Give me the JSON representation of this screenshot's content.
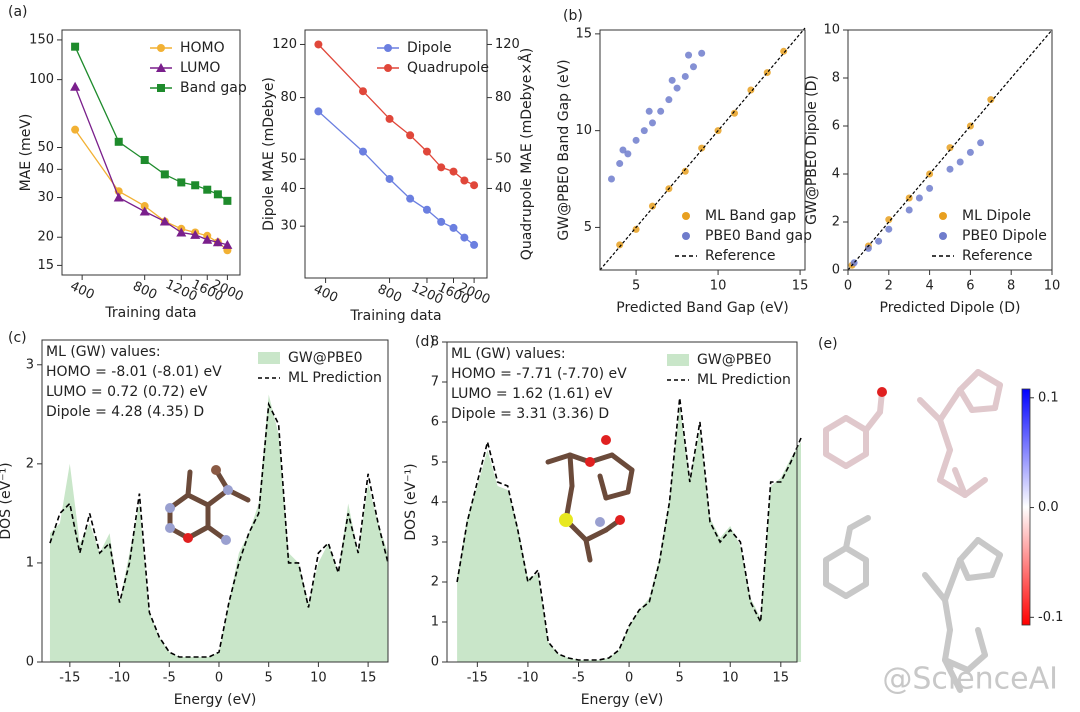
{
  "panel_labels": [
    "(a)",
    "(b)",
    "(c)",
    "(d)",
    "(e)"
  ],
  "watermark": "@ScienceAI",
  "chart_data": [
    {
      "type": "line",
      "xlabel": "Training data",
      "ylabel": "MAE (meV)",
      "xlog": true,
      "ylog": true,
      "x": [
        370,
        600,
        800,
        1000,
        1200,
        1400,
        1600,
        1800,
        2000
      ],
      "xlim": [
        320,
        2300
      ],
      "xticks": [
        400,
        800,
        1200,
        1600,
        2000
      ],
      "ylim": [
        13.6,
        166
      ],
      "yticks": [
        15,
        20,
        30,
        40,
        50,
        100,
        150
      ],
      "legend": "upper right",
      "series": [
        {
          "name": "HOMO",
          "color": "#f2b134",
          "marker": "circle",
          "values": [
            60,
            32,
            27.5,
            23.5,
            21.8,
            21,
            20.3,
            19,
            17.5
          ]
        },
        {
          "name": "LUMO",
          "color": "#7a1f8c",
          "marker": "triangle",
          "values": [
            93,
            30,
            26,
            23.5,
            21,
            20.5,
            19.5,
            19,
            18.5
          ]
        },
        {
          "name": "Band gap",
          "color": "#1e8b2c",
          "marker": "square",
          "values": [
            140,
            53,
            44,
            38,
            35,
            34,
            32.5,
            31,
            29
          ]
        }
      ]
    },
    {
      "type": "line",
      "xlabel": "Training data",
      "ylabel": "Dipole MAE (mDebye)",
      "y2label": "Quadrupole MAE (mDebye×Å)",
      "xlog": true,
      "ylog": true,
      "x": [
        370,
        600,
        800,
        1000,
        1200,
        1400,
        1600,
        1800,
        2000
      ],
      "xlim": [
        320,
        2300
      ],
      "xticks": [
        400,
        800,
        1200,
        1600,
        2000
      ],
      "ylim": [
        20.2,
        134
      ],
      "yticks": [
        30,
        40,
        50,
        80,
        120
      ],
      "y2lim": [
        20.2,
        134
      ],
      "y2ticks": [
        40,
        50,
        80,
        120
      ],
      "legend": "upper right",
      "series": [
        {
          "name": "Dipole",
          "color": "#6b7fe0",
          "marker": "circle",
          "values": [
            72,
            53,
            43,
            37,
            34,
            31,
            29.6,
            27.5,
            26
          ]
        },
        {
          "name": "Quadrupole",
          "color": "#e0473a",
          "marker": "circle",
          "axis": "y2",
          "values": [
            120,
            84,
            68,
            60,
            53,
            47,
            45.5,
            42.5,
            41
          ]
        }
      ]
    },
    {
      "type": "scatter",
      "xlabel": "Predicted Band Gap (eV)",
      "ylabel": "GW@PBE0 Band Gap (eV)",
      "xlim": [
        2.8,
        15.3
      ],
      "xticks": [
        5,
        10,
        15
      ],
      "ylim": [
        2.8,
        15.2
      ],
      "yticks": [
        5,
        10,
        15
      ],
      "legend": "lower right",
      "series": [
        {
          "name": "ML Band gap",
          "color": "#e8a020",
          "x": [
            4,
            5,
            6,
            7,
            8,
            9,
            10,
            11,
            12,
            13,
            14
          ],
          "values": [
            4.1,
            4.9,
            6.1,
            7.0,
            7.9,
            9.1,
            10.0,
            10.9,
            12.1,
            13.0,
            14.1
          ]
        },
        {
          "name": "PBE0 Band gap",
          "color": "#6f7ccc",
          "x": [
            3.5,
            4,
            4.5,
            5,
            5.5,
            6,
            6.5,
            7,
            7.5,
            8,
            8.5,
            9,
            4.2,
            5.8,
            7.2,
            8.2
          ],
          "values": [
            7.5,
            8.3,
            8.8,
            9.5,
            10.0,
            10.4,
            11.0,
            11.6,
            12.2,
            12.8,
            13.3,
            14.0,
            9.0,
            11.0,
            12.6,
            13.9
          ]
        },
        {
          "name": "Reference",
          "color": "#000000",
          "style": "dashed",
          "x": [
            2.8,
            15.3
          ],
          "values": [
            2.8,
            15.3
          ]
        }
      ]
    },
    {
      "type": "scatter",
      "xlabel": "Predicted Dipole (D)",
      "ylabel": "GW@PBE0 Dipole (D)",
      "xlim": [
        0,
        10
      ],
      "xticks": [
        0,
        2,
        4,
        6,
        8,
        10
      ],
      "ylim": [
        0,
        10
      ],
      "yticks": [
        0,
        2,
        4,
        6,
        8,
        10
      ],
      "legend": "lower right",
      "series": [
        {
          "name": "ML Dipole",
          "color": "#e8a020",
          "x": [
            0.2,
            1,
            2,
            3,
            4,
            5,
            6,
            7
          ],
          "values": [
            0.2,
            1.0,
            2.1,
            3.0,
            4.0,
            5.1,
            6.0,
            7.1
          ]
        },
        {
          "name": "PBE0 Dipole",
          "color": "#6f7ccc",
          "x": [
            0.3,
            1,
            2,
            3,
            4,
            5,
            6,
            6.5,
            1.5,
            3.5,
            5.5
          ],
          "values": [
            0.3,
            0.9,
            1.7,
            2.5,
            3.4,
            4.2,
            4.9,
            5.3,
            1.2,
            3.0,
            4.5
          ]
        },
        {
          "name": "Reference",
          "color": "#000000",
          "style": "dashed",
          "x": [
            0,
            10
          ],
          "values": [
            0,
            10
          ]
        }
      ]
    },
    {
      "type": "line",
      "xlabel": "Energy (eV)",
      "ylabel": "DOS (eV⁻¹)",
      "annotation": [
        "ML (GW) values:",
        "HOMO = -8.01 (-8.01) eV",
        "LUMO = 0.72 (0.72) eV",
        "Dipole = 4.28 (4.35) D"
      ],
      "x": [
        -17,
        -16,
        -15,
        -14,
        -13,
        -12,
        -11,
        -10,
        -9,
        -8,
        -7,
        -6,
        -5,
        -4,
        -3,
        -2,
        -1,
        0,
        1,
        2,
        3,
        4,
        5,
        6,
        7,
        8,
        9,
        10,
        11,
        12,
        13,
        14,
        15,
        16,
        17
      ],
      "xlim": [
        -17.8,
        17
      ],
      "xticks": [
        -15,
        -10,
        -5,
        0,
        5,
        10,
        15
      ],
      "ylim": [
        0,
        3.25
      ],
      "yticks": [
        0,
        1,
        2,
        3
      ],
      "legend": "upper right",
      "series": [
        {
          "name": "GW@PBE0",
          "color": "#c9e6c9",
          "style": "area",
          "values": [
            1.3,
            1.4,
            2.0,
            1.2,
            1.4,
            1.1,
            1.3,
            0.6,
            1.1,
            1.6,
            0.5,
            0.25,
            0.1,
            0.05,
            0.05,
            0.05,
            0.05,
            0.1,
            0.6,
            1.1,
            1.3,
            1.6,
            2.7,
            2.3,
            1.1,
            1.0,
            0.6,
            1.0,
            1.2,
            0.9,
            1.6,
            1.1,
            1.8,
            1.4,
            1.1
          ]
        },
        {
          "name": "ML Prediction",
          "color": "#000000",
          "style": "dashed",
          "values": [
            1.2,
            1.5,
            1.6,
            1.1,
            1.5,
            1.1,
            1.2,
            0.6,
            1.0,
            1.7,
            0.5,
            0.25,
            0.1,
            0.05,
            0.05,
            0.05,
            0.05,
            0.1,
            0.6,
            1.0,
            1.3,
            1.5,
            2.6,
            2.4,
            1.0,
            1.0,
            0.55,
            1.1,
            1.2,
            0.9,
            1.5,
            1.1,
            1.9,
            1.4,
            1.0
          ]
        }
      ]
    },
    {
      "type": "line",
      "xlabel": "Energy (eV)",
      "ylabel": "DOS (eV⁻¹)",
      "annotation": [
        "ML (GW) values:",
        "HOMO = -7.71 (-7.70) eV",
        "LUMO = 1.62 (1.61) eV",
        "Dipole = 3.31 (3.36) D"
      ],
      "x": [
        -17,
        -16,
        -15,
        -14,
        -13,
        -12,
        -11,
        -10,
        -9,
        -8,
        -7,
        -6,
        -5,
        -4,
        -3,
        -2,
        -1,
        0,
        1,
        2,
        3,
        4,
        5,
        6,
        7,
        8,
        9,
        10,
        11,
        12,
        13,
        14,
        15,
        16,
        17
      ],
      "xlim": [
        -18,
        16.6
      ],
      "xticks": [
        -15,
        -10,
        -5,
        0,
        5,
        10,
        15
      ],
      "ylim": [
        0,
        8
      ],
      "yticks": [
        0,
        1,
        2,
        3,
        4,
        5,
        6,
        7,
        8
      ],
      "legend": "upper right",
      "series": [
        {
          "name": "GW@PBE0",
          "color": "#c9e6c9",
          "style": "area",
          "values": [
            2.1,
            3.6,
            4.4,
            5.3,
            4.4,
            4.3,
            3.4,
            2.1,
            2.2,
            0.5,
            0.2,
            0.1,
            0.05,
            0.05,
            0.05,
            0.1,
            0.3,
            0.9,
            1.3,
            1.6,
            2.6,
            4.1,
            6.4,
            4.6,
            5.8,
            3.6,
            3.1,
            3.4,
            2.9,
            1.6,
            1.1,
            4.4,
            4.6,
            5.1,
            5.5
          ]
        },
        {
          "name": "ML Prediction",
          "color": "#000000",
          "style": "dashed",
          "values": [
            2.0,
            3.5,
            4.5,
            5.5,
            4.5,
            4.4,
            3.3,
            2.0,
            2.3,
            0.5,
            0.2,
            0.1,
            0.05,
            0.05,
            0.05,
            0.1,
            0.3,
            0.9,
            1.3,
            1.5,
            2.5,
            4.0,
            6.6,
            4.5,
            6.0,
            3.5,
            3.0,
            3.3,
            3.0,
            1.5,
            1.0,
            4.5,
            4.5,
            5.0,
            5.6
          ]
        }
      ]
    },
    {
      "type": "colorbar",
      "ylim": [
        -0.107,
        0.108
      ],
      "yticks": [
        -0.1,
        {
          "value": 0,
          "label": "0.0"
        },
        0.1
      ],
      "colors": [
        "#ff0000",
        "#ffffff",
        "#0000ff"
      ]
    }
  ]
}
